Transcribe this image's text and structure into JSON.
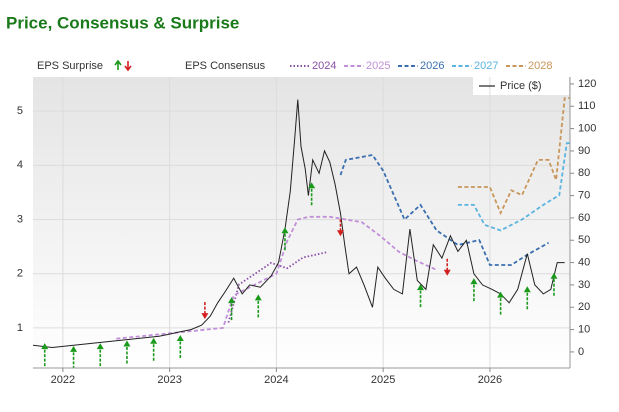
{
  "chart_data": {
    "type": "line",
    "title": "Price, Consensus & Surprise",
    "surprise_label": "EPS Surprise",
    "consensus_label": "EPS Consensus",
    "xlim": [
      2021.72,
      2026.75
    ],
    "xticks": [
      2022,
      2023,
      2024,
      2025,
      2026
    ],
    "ylim": [
      0.26,
      5.63
    ],
    "yticks": [
      1,
      2,
      3,
      4,
      5
    ],
    "y2lim": [
      -7.2,
      123.1
    ],
    "y2ticks": [
      0,
      10,
      20,
      30,
      40,
      50,
      60,
      70,
      80,
      90,
      100,
      110,
      120
    ],
    "grid": true,
    "series": [
      {
        "name": "2024",
        "color": "#8b4fa8",
        "dash": "dotted",
        "x": [
          2023.55,
          2023.65,
          2023.8,
          2023.95,
          2024.1,
          2024.25,
          2024.48
        ],
        "values": [
          1.1,
          1.8,
          2.0,
          2.2,
          2.1,
          2.3,
          2.4
        ]
      },
      {
        "name": "2025",
        "color": "#c08fd8",
        "dash": "dashed",
        "x": [
          2022.5,
          2023.0,
          2023.5,
          2023.6,
          2023.8,
          2024.0,
          2024.1,
          2024.2,
          2024.3,
          2024.5,
          2024.8,
          2024.97,
          2025.15,
          2025.3,
          2025.5
        ],
        "values": [
          0.8,
          0.9,
          1.0,
          1.6,
          1.8,
          2.0,
          2.6,
          3.0,
          3.05,
          3.05,
          2.95,
          2.7,
          2.4,
          2.25,
          2.07
        ]
      },
      {
        "name": "2026",
        "color": "#3a6fb0",
        "dash": "dashed",
        "x": [
          2024.6,
          2024.65,
          2024.9,
          2025.0,
          2025.2,
          2025.35,
          2025.5,
          2025.7,
          2025.9,
          2026.0,
          2026.2,
          2026.35,
          2026.55
        ],
        "values": [
          3.82,
          4.1,
          4.19,
          3.9,
          3.0,
          3.27,
          2.8,
          2.53,
          2.62,
          2.16,
          2.16,
          2.35,
          2.57
        ]
      },
      {
        "name": "2027",
        "color": "#5ab4e0",
        "dash": "dashed",
        "x": [
          2025.7,
          2025.85,
          2025.95,
          2026.1,
          2026.3,
          2026.5,
          2026.65,
          2026.72,
          2026.75
        ],
        "values": [
          3.27,
          3.27,
          2.9,
          2.8,
          3.0,
          3.27,
          3.45,
          4.41,
          4.41
        ]
      },
      {
        "name": "2028",
        "color": "#c8965a",
        "dash": "dashed",
        "x": [
          2025.7,
          2026.0,
          2026.1,
          2026.2,
          2026.3,
          2026.45,
          2026.55,
          2026.62,
          2026.7,
          2026.75
        ],
        "values": [
          3.6,
          3.6,
          3.12,
          3.54,
          3.45,
          4.1,
          4.1,
          3.73,
          5.24,
          5.24
        ]
      },
      {
        "name": "Price ($)",
        "color": "#222222",
        "dash": "solid",
        "axis": "y2",
        "x": [
          2021.72,
          2021.9,
          2022.1,
          2022.3,
          2022.5,
          2022.7,
          2022.9,
          2023.0,
          2023.1,
          2023.2,
          2023.3,
          2023.38,
          2023.45,
          2023.52,
          2023.6,
          2023.68,
          2023.75,
          2023.85,
          2023.95,
          2024.02,
          2024.08,
          2024.13,
          2024.17,
          2024.2,
          2024.23,
          2024.27,
          2024.3,
          2024.34,
          2024.4,
          2024.45,
          2024.5,
          2024.55,
          2024.6,
          2024.64,
          2024.68,
          2024.75,
          2024.82,
          2024.9,
          2024.95,
          2025.02,
          2025.1,
          2025.18,
          2025.25,
          2025.32,
          2025.4,
          2025.47,
          2025.55,
          2025.63,
          2025.7,
          2025.78,
          2025.85,
          2025.93,
          2026.02,
          2026.1,
          2026.18,
          2026.26,
          2026.35,
          2026.42,
          2026.5,
          2026.57,
          2026.63,
          2026.7
        ],
        "values": [
          3,
          2,
          3,
          4,
          5,
          6,
          7,
          8,
          9,
          10,
          12,
          16,
          22,
          27,
          33,
          26,
          30,
          29,
          34,
          40,
          55,
          72,
          95,
          113,
          92,
          82,
          70,
          86,
          80,
          90,
          85,
          75,
          62,
          48,
          35,
          38,
          30,
          20,
          38,
          33,
          28,
          26,
          55,
          32,
          28,
          48,
          42,
          52,
          45,
          50,
          35,
          30,
          28,
          26,
          22,
          28,
          44,
          30,
          26,
          28,
          40,
          40
        ]
      }
    ],
    "surprises": {
      "x": [
        2021.83,
        2022.1,
        2022.35,
        2022.6,
        2022.85,
        2023.1,
        2023.33,
        2023.58,
        2023.83,
        2024.08,
        2024.33,
        2024.6,
        2025.35,
        2025.6,
        2025.85,
        2026.1,
        2026.35,
        2026.6
      ],
      "values": [
        0.7,
        0.65,
        0.7,
        0.75,
        0.8,
        0.85,
        1.18,
        1.55,
        1.6,
        2.84,
        3.67,
        2.71,
        1.79,
        1.98,
        1.9,
        1.65,
        1.75,
        2.0
      ],
      "colors": [
        "#1a9a1a",
        "#1a9a1a",
        "#1a9a1a",
        "#1a9a1a",
        "#1a9a1a",
        "#1a9a1a",
        "#d42020",
        "#1a9a1a",
        "#1a9a1a",
        "#1a9a1a",
        "#1a9a1a",
        "#d42020",
        "#1a9a1a",
        "#d42020",
        "#1a9a1a",
        "#1a9a1a",
        "#1a9a1a",
        "#1a9a1a"
      ]
    }
  }
}
